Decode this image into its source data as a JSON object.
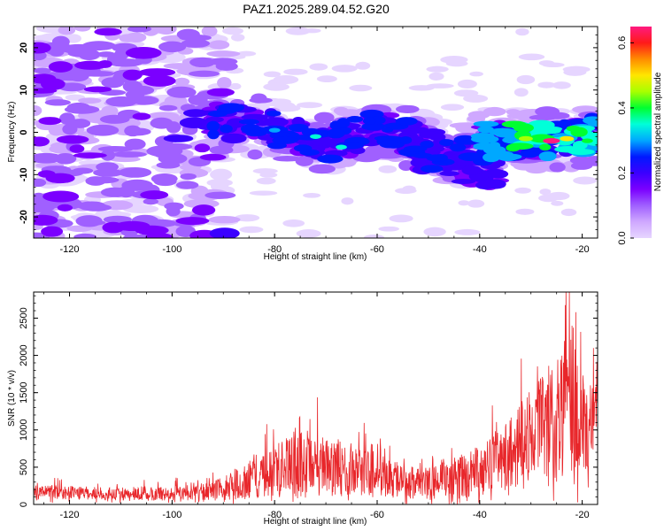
{
  "colors": {
    "line": "#e8262a",
    "frame": "#000000",
    "colormap": [
      "#ffffff",
      "#e6d5ff",
      "#cfa8ff",
      "#a060ff",
      "#7b00ff",
      "#3b00ff",
      "#0019ff",
      "#00a8ff",
      "#00ffd9",
      "#00ff30",
      "#a8ff00",
      "#ffe600",
      "#ff8c00",
      "#ff1a1a",
      "#ff1a80"
    ]
  },
  "chart_data": [
    {
      "type": "heatmap",
      "title": "PAZ1.2025.289.04.52.G20",
      "xlabel": "Height of straight line (km)",
      "ylabel": "Frequency (Hz)",
      "xlim": [
        -127,
        -17
      ],
      "ylim": [
        -25,
        25
      ],
      "x_ticks": [
        -120,
        -100,
        -80,
        -60,
        -40,
        -20
      ],
      "y_ticks": [
        -20,
        -10,
        0,
        10,
        20
      ],
      "colorbar": {
        "label": "Normalized spectral amplitude",
        "range": [
          0.0,
          0.65
        ],
        "ticks": [
          "0.0",
          "0.2",
          "0.4",
          "0.6"
        ]
      },
      "features": [
        {
          "name": "diffuse noise band",
          "x_range": [
            -127,
            -95
          ],
          "freq_range": [
            -25,
            25
          ],
          "level": 0.1
        },
        {
          "name": "main signal track",
          "points": [
            [
              -92,
              3
            ],
            [
              -80,
              1
            ],
            [
              -70,
              -3
            ],
            [
              -60,
              1
            ],
            [
              -50,
              -3
            ],
            [
              -45,
              -7
            ],
            [
              -40,
              -2
            ],
            [
              -30,
              -2
            ],
            [
              -25,
              -2
            ],
            [
              -20,
              -1
            ],
            [
              -17,
              0
            ]
          ]
        },
        {
          "name": "secondary branch",
          "points": [
            [
              -50,
              -6
            ],
            [
              -44,
              -9
            ],
            [
              -38,
              -10
            ]
          ]
        },
        {
          "name": "peak",
          "x": -26,
          "freq": -2,
          "level": 0.65
        }
      ]
    },
    {
      "type": "line",
      "xlabel": "Height of straight line (km)",
      "ylabel": "SNR (10 * v/v)",
      "xlim": [
        -127,
        -17
      ],
      "ylim": [
        0,
        2850
      ],
      "x_ticks": [
        -120,
        -100,
        -80,
        -60,
        -40,
        -20
      ],
      "y_ticks": [
        0,
        500,
        1000,
        1500,
        2000,
        2500
      ],
      "series": [
        {
          "name": "SNR",
          "envelope": [
            {
              "x": -127,
              "mean": 160,
              "amp": 130
            },
            {
              "x": -115,
              "mean": 150,
              "amp": 120
            },
            {
              "x": -100,
              "mean": 140,
              "amp": 120
            },
            {
              "x": -92,
              "mean": 180,
              "amp": 170
            },
            {
              "x": -85,
              "mean": 330,
              "amp": 350
            },
            {
              "x": -80,
              "mean": 440,
              "amp": 450
            },
            {
              "x": -75,
              "mean": 560,
              "amp": 650
            },
            {
              "x": -70,
              "mean": 500,
              "amp": 520
            },
            {
              "x": -65,
              "mean": 430,
              "amp": 450
            },
            {
              "x": -60,
              "mean": 390,
              "amp": 400
            },
            {
              "x": -55,
              "mean": 300,
              "amp": 300
            },
            {
              "x": -50,
              "mean": 280,
              "amp": 300
            },
            {
              "x": -45,
              "mean": 350,
              "amp": 380
            },
            {
              "x": -40,
              "mean": 450,
              "amp": 450
            },
            {
              "x": -35,
              "mean": 620,
              "amp": 600
            },
            {
              "x": -30,
              "mean": 900,
              "amp": 900
            },
            {
              "x": -25,
              "mean": 1100,
              "amp": 1100
            },
            {
              "x": -22,
              "mean": 1400,
              "amp": 1400
            },
            {
              "x": -20,
              "mean": 1150,
              "amp": 1150
            },
            {
              "x": -19,
              "mean": 700,
              "amp": 700
            },
            {
              "x": -18,
              "mean": 1300,
              "amp": 900
            },
            {
              "x": -17,
              "mean": 1650,
              "amp": 600
            }
          ],
          "max": {
            "x": -22.5,
            "y": 2850
          }
        }
      ]
    }
  ]
}
